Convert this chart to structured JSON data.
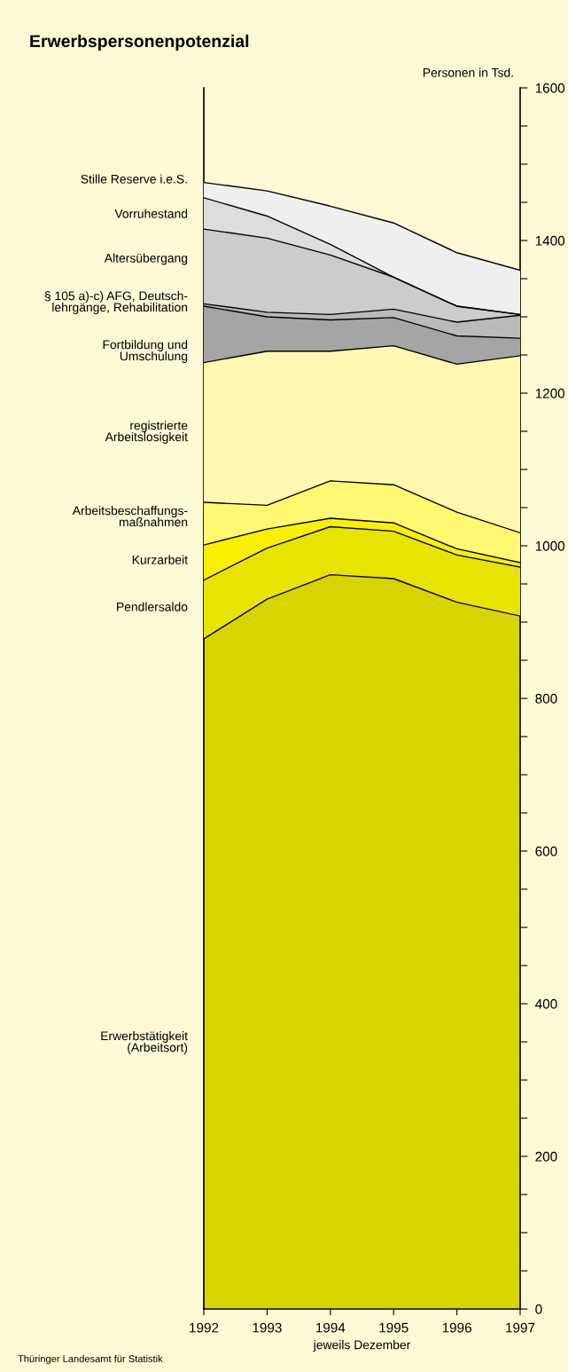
{
  "chart_data": {
    "type": "area",
    "stacked": true,
    "title": "Erwerbspersonenpotenzial",
    "ylabel": "Personen in Tsd.",
    "xlabel": "jeweils Dezember",
    "annotations": [
      "Thüringer Landesamt für Statistik"
    ],
    "categories": [
      "1992",
      "1993",
      "1994",
      "1995",
      "1996",
      "1997"
    ],
    "ylim": [
      0,
      1600
    ],
    "yticks": [
      0,
      {
        "value": 50,
        "label": null
      },
      {
        "value": 100,
        "label": null
      },
      {
        "value": 150,
        "label": null
      },
      200,
      {
        "value": 250,
        "label": null
      },
      {
        "value": 300,
        "label": null
      },
      {
        "value": 350,
        "label": null
      },
      400,
      {
        "value": 450,
        "label": null
      },
      {
        "value": 500,
        "label": null
      },
      {
        "value": 550,
        "label": null
      },
      600,
      {
        "value": 650,
        "label": null
      },
      {
        "value": 700,
        "label": null
      },
      {
        "value": 750,
        "label": null
      },
      800,
      {
        "value": 850,
        "label": null
      },
      {
        "value": 900,
        "label": null
      },
      {
        "value": 950,
        "label": null
      },
      1000,
      {
        "value": 1050,
        "label": null
      },
      {
        "value": 1100,
        "label": null
      },
      {
        "value": 1150,
        "label": null
      },
      1200,
      {
        "value": 1250,
        "label": null
      },
      {
        "value": 1300,
        "label": null
      },
      {
        "value": 1350,
        "label": null
      },
      1400,
      {
        "value": 1450,
        "label": null
      },
      {
        "value": 1500,
        "label": null
      },
      {
        "value": 1550,
        "label": null
      },
      1600
    ],
    "grid": false,
    "legend": false,
    "series": [
      {
        "name": "Erwerbstätigkeit\n(Arbeitsort)",
        "color": "#d8d400",
        "values": [
          878,
          930,
          962,
          957,
          926,
          908
        ]
      },
      {
        "name": "Pendlersaldo",
        "color": "#e8e400",
        "values": [
          77,
          67,
          63,
          62,
          62,
          64
        ]
      },
      {
        "name": "Kurzarbeit",
        "color": "#f8f000",
        "values": [
          46,
          25,
          11,
          11,
          8,
          6
        ]
      },
      {
        "name": "Arbeitsbeschaffungs-\nmaßnahmen",
        "color": "#fff870",
        "values": [
          56,
          31,
          49,
          50,
          48,
          39
        ]
      },
      {
        "name": "registrierte\nArbeitslosigkeit",
        "color": "#fff8b0",
        "values": [
          183,
          202,
          170,
          182,
          194,
          232
        ]
      },
      {
        "name": "Fortbildung und\nUmschulung",
        "color": "#a5a5a5",
        "values": [
          74,
          45,
          41,
          37,
          37,
          23
        ]
      },
      {
        "name": "§ 105 a)-c) AFG, Deutsch-\nlehrgänge, Rehabilitation",
        "color": "#bababa",
        "values": [
          3,
          6,
          7,
          11,
          18,
          30
        ]
      },
      {
        "name": "Altersübergang",
        "color": "#cccccc",
        "values": [
          98,
          97,
          78,
          42,
          21,
          1
        ]
      },
      {
        "name": "Vorruhestand",
        "color": "#dddddd",
        "values": [
          41,
          29,
          14,
          0,
          0,
          0
        ]
      },
      {
        "name": "Stille Reserve i.e.S.",
        "color": "#efefef",
        "values": [
          20,
          33,
          50,
          71,
          70,
          58
        ]
      }
    ]
  }
}
